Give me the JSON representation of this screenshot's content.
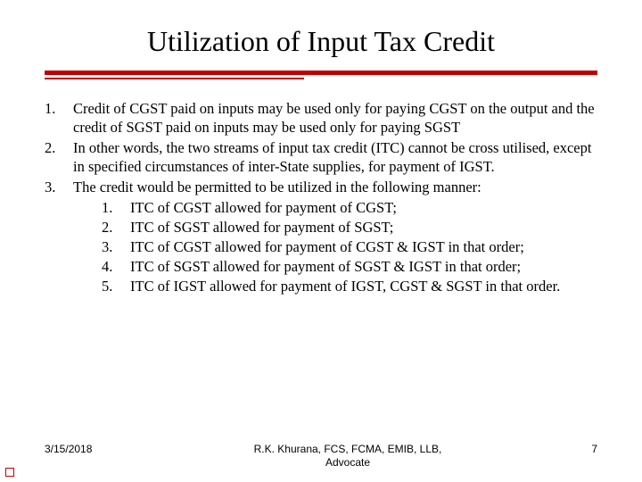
{
  "title": "Utilization of Input Tax Credit",
  "accent_color": "#c00000",
  "background_color": "#ffffff",
  "text_color": "#000000",
  "main_items": [
    {
      "num": "1.",
      "text": "Credit of CGST paid on inputs may be used only for paying CGST on the output and the credit of SGST paid on inputs may be used only for paying SGST"
    },
    {
      "num": "2.",
      "text": "In other words, the two streams of input tax credit (ITC) cannot be cross utilised, except in specified circumstances of inter-State supplies, for payment of IGST."
    },
    {
      "num": "3.",
      "text": "The credit would be permitted to be utilized in the following manner:"
    }
  ],
  "sub_items": [
    {
      "num": "1.",
      "text": "ITC of CGST allowed for payment of CGST;"
    },
    {
      "num": "2.",
      "text": "ITC of SGST allowed for payment of SGST;"
    },
    {
      "num": "3.",
      "text": "ITC of CGST allowed for payment of CGST & IGST in that order;"
    },
    {
      "num": "4.",
      "text": "ITC of SGST allowed for payment of SGST & IGST in that order;"
    },
    {
      "num": "5.",
      "text": "ITC of IGST allowed for payment of IGST, CGST & SGST in that order."
    }
  ],
  "footer": {
    "date": "3/15/2018",
    "author_line1": "R.K. Khurana, FCS, FCMA, EMIB, LLB,",
    "author_line2": "Advocate",
    "page_number": "7"
  }
}
